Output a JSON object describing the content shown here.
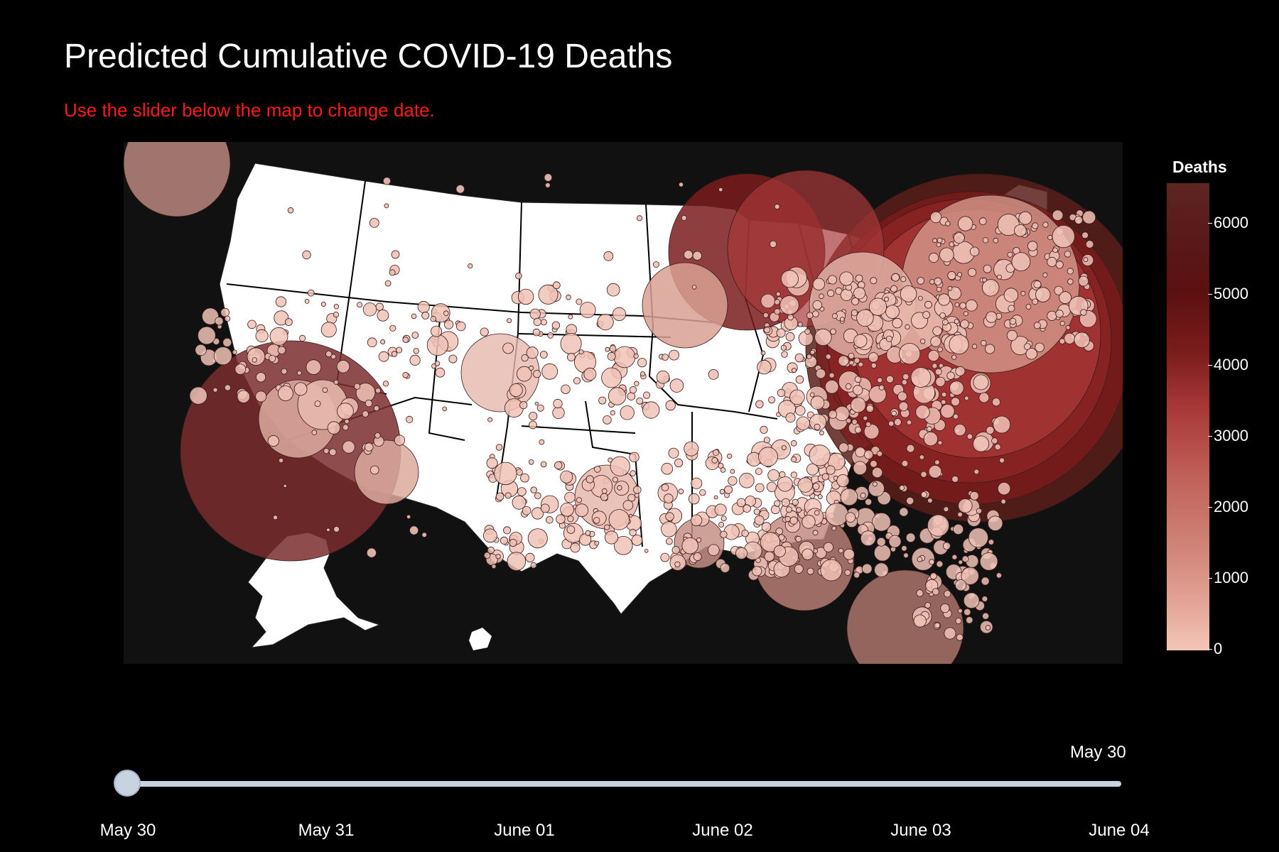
{
  "title": "Predicted Cumulative COVID-19 Deaths",
  "subtitle": "Use the slider below the map to change date.",
  "legend": {
    "title": "Deaths",
    "ticks": [
      "6000",
      "5000",
      "4000",
      "3000",
      "2000",
      "1000",
      "0"
    ]
  },
  "slider": {
    "current_label": "May 30",
    "ticks": [
      "May 30",
      "May 31",
      "June 01",
      "June 02",
      "June 03",
      "June 04"
    ],
    "selected_index": 0
  },
  "colors": {
    "background": "#000000",
    "map_bg": "#111111",
    "land": "#ffffff",
    "subtitle": "#ff1a1a",
    "slider": "#c8d3e2"
  }
}
